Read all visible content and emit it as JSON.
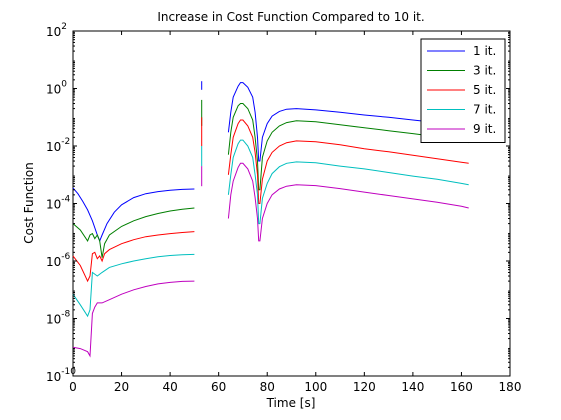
{
  "chart_data": {
    "type": "line",
    "title": "Increase in Cost Function Compared to 10 it.",
    "xlabel": "Time [s]",
    "ylabel": "Cost Function",
    "xlim": [
      0,
      180
    ],
    "ylim_exponents": [
      -10,
      2
    ],
    "y_scale": "log",
    "x_ticks": [
      0,
      20,
      40,
      60,
      80,
      100,
      120,
      140,
      160,
      180
    ],
    "y_tick_labels": [
      {
        "exp": -10,
        "base": "10",
        "sup": "-10"
      },
      {
        "exp": -8,
        "base": "10",
        "sup": "-8"
      },
      {
        "exp": -6,
        "base": "10",
        "sup": "-6"
      },
      {
        "exp": -4,
        "base": "10",
        "sup": "-4"
      },
      {
        "exp": -2,
        "base": "10",
        "sup": "-2"
      },
      {
        "exp": 0,
        "base": "10",
        "sup": "0"
      },
      {
        "exp": 2,
        "base": "10",
        "sup": "2"
      }
    ],
    "grid": false,
    "legend_position": "top-right",
    "series": [
      {
        "name": "1 it.",
        "color": "#0000ff",
        "segments": [
          [
            [
              0,
              0.00035
            ],
            [
              2,
              0.00022
            ],
            [
              4,
              0.00012
            ],
            [
              6,
              6e-05
            ],
            [
              8,
              2.5e-05
            ],
            [
              10,
              8e-06
            ],
            [
              11,
              5e-06
            ],
            [
              12,
              8e-06
            ],
            [
              14,
              2e-05
            ],
            [
              17,
              5e-05
            ],
            [
              20,
              9e-05
            ],
            [
              25,
              0.00016
            ],
            [
              30,
              0.00022
            ],
            [
              35,
              0.00026
            ],
            [
              40,
              0.00029
            ],
            [
              45,
              0.00031
            ],
            [
              50,
              0.00032
            ]
          ],
          [
            [
              53,
              1.8
            ],
            [
              53,
              0.9
            ]
          ],
          [
            [
              64,
              0.03
            ],
            [
              65,
              0.15
            ],
            [
              66,
              0.5
            ],
            [
              68,
              1.2
            ],
            [
              69,
              1.6
            ],
            [
              70,
              1.6
            ],
            [
              72,
              1.1
            ],
            [
              74,
              0.5
            ],
            [
              75,
              0.15
            ],
            [
              76,
              0.02
            ],
            [
              76.5,
              0.003
            ],
            [
              77,
              0.003
            ],
            [
              78,
              0.02
            ],
            [
              80,
              0.06
            ],
            [
              82,
              0.11
            ],
            [
              85,
              0.16
            ],
            [
              88,
              0.19
            ],
            [
              92,
              0.2
            ],
            [
              100,
              0.18
            ],
            [
              110,
              0.15
            ],
            [
              120,
              0.12
            ],
            [
              130,
              0.1
            ],
            [
              140,
              0.08
            ],
            [
              150,
              0.065
            ],
            [
              160,
              0.053
            ],
            [
              163,
              0.05
            ]
          ]
        ]
      },
      {
        "name": "3 it.",
        "color": "#007f00",
        "segments": [
          [
            [
              0,
              2e-05
            ],
            [
              3,
              1.2e-05
            ],
            [
              6,
              5e-06
            ],
            [
              7,
              8e-06
            ],
            [
              8,
              9e-06
            ],
            [
              9,
              6e-06
            ],
            [
              10,
              8e-06
            ],
            [
              11,
              5e-06
            ],
            [
              12,
              1.3e-06
            ],
            [
              13,
              4e-06
            ],
            [
              15,
              8e-06
            ],
            [
              20,
              1.6e-05
            ],
            [
              25,
              2.5e-05
            ],
            [
              30,
              3.5e-05
            ],
            [
              35,
              4.5e-05
            ],
            [
              40,
              5.5e-05
            ],
            [
              45,
              6.3e-05
            ],
            [
              50,
              7e-05
            ]
          ],
          [
            [
              53,
              0.4
            ],
            [
              53,
              0.05
            ]
          ],
          [
            [
              64,
              0.005
            ],
            [
              65,
              0.03
            ],
            [
              66,
              0.1
            ],
            [
              68,
              0.25
            ],
            [
              69,
              0.3
            ],
            [
              70,
              0.3
            ],
            [
              72,
              0.2
            ],
            [
              74,
              0.08
            ],
            [
              75,
              0.02
            ],
            [
              76,
              0.003
            ],
            [
              76.5,
              0.0003
            ],
            [
              77,
              0.0003
            ],
            [
              78,
              0.004
            ],
            [
              80,
              0.015
            ],
            [
              82,
              0.03
            ],
            [
              85,
              0.05
            ],
            [
              88,
              0.065
            ],
            [
              92,
              0.075
            ],
            [
              100,
              0.07
            ],
            [
              110,
              0.055
            ],
            [
              120,
              0.043
            ],
            [
              130,
              0.034
            ],
            [
              140,
              0.027
            ],
            [
              150,
              0.021
            ],
            [
              160,
              0.015
            ],
            [
              163,
              0.013
            ]
          ]
        ]
      },
      {
        "name": "5 it.",
        "color": "#ff0000",
        "segments": [
          [
            [
              0,
              1.5e-06
            ],
            [
              3,
              7e-07
            ],
            [
              6,
              2e-07
            ],
            [
              7,
              3e-07
            ],
            [
              8,
              1.8e-06
            ],
            [
              9,
              2e-06
            ],
            [
              10,
              1.2e-06
            ],
            [
              11,
              1.5e-06
            ],
            [
              12,
              1e-06
            ],
            [
              13,
              1.8e-06
            ],
            [
              15,
              2.5e-06
            ],
            [
              20,
              4e-06
            ],
            [
              25,
              5.5e-06
            ],
            [
              30,
              7e-06
            ],
            [
              35,
              8e-06
            ],
            [
              40,
              9e-06
            ],
            [
              45,
              9.8e-06
            ],
            [
              50,
              1.05e-05
            ]
          ],
          [
            [
              53,
              0.1
            ],
            [
              53,
              0.01
            ]
          ],
          [
            [
              64,
              0.001
            ],
            [
              65,
              0.005
            ],
            [
              66,
              0.02
            ],
            [
              68,
              0.06
            ],
            [
              69,
              0.08
            ],
            [
              70,
              0.08
            ],
            [
              72,
              0.05
            ],
            [
              74,
              0.02
            ],
            [
              75,
              0.006
            ],
            [
              76,
              0.001
            ],
            [
              76.5,
              0.0001
            ],
            [
              77,
              0.0001
            ],
            [
              78,
              0.0007
            ],
            [
              80,
              0.003
            ],
            [
              82,
              0.006
            ],
            [
              85,
              0.01
            ],
            [
              88,
              0.013
            ],
            [
              92,
              0.015
            ],
            [
              100,
              0.014
            ],
            [
              110,
              0.011
            ],
            [
              120,
              0.008
            ],
            [
              130,
              0.0063
            ],
            [
              140,
              0.0048
            ],
            [
              150,
              0.0036
            ],
            [
              160,
              0.0027
            ],
            [
              163,
              0.0025
            ]
          ]
        ]
      },
      {
        "name": "7 it.",
        "color": "#00bfbf",
        "segments": [
          [
            [
              0,
              7e-08
            ],
            [
              3,
              3e-08
            ],
            [
              6,
              1.2e-08
            ],
            [
              7,
              2e-08
            ],
            [
              8,
              4e-07
            ],
            [
              10,
              3e-07
            ],
            [
              12,
              4e-07
            ],
            [
              15,
              6e-07
            ],
            [
              20,
              8e-07
            ],
            [
              25,
              1e-06
            ],
            [
              30,
              1.2e-06
            ],
            [
              35,
              1.4e-06
            ],
            [
              40,
              1.55e-06
            ],
            [
              45,
              1.65e-06
            ],
            [
              50,
              1.7e-06
            ]
          ],
          [
            [
              53,
              0.01
            ],
            [
              53,
              0.002
            ]
          ],
          [
            [
              64,
              0.0002
            ],
            [
              65,
              0.001
            ],
            [
              66,
              0.004
            ],
            [
              68,
              0.012
            ],
            [
              69,
              0.016
            ],
            [
              70,
              0.016
            ],
            [
              72,
              0.01
            ],
            [
              74,
              0.004
            ],
            [
              75,
              0.001
            ],
            [
              76,
              0.0002
            ],
            [
              76.5,
              2e-05
            ],
            [
              77,
              2e-05
            ],
            [
              78,
              0.00015
            ],
            [
              80,
              0.0005
            ],
            [
              82,
              0.0011
            ],
            [
              85,
              0.0019
            ],
            [
              88,
              0.0025
            ],
            [
              92,
              0.0028
            ],
            [
              100,
              0.0026
            ],
            [
              110,
              0.002
            ],
            [
              120,
              0.0016
            ],
            [
              130,
              0.0012
            ],
            [
              140,
              0.0009
            ],
            [
              150,
              0.0007
            ],
            [
              160,
              0.0005
            ],
            [
              163,
              0.00045
            ]
          ]
        ]
      },
      {
        "name": "9 it.",
        "color": "#bf00bf",
        "segments": [
          [
            [
              0,
              1e-09
            ],
            [
              3,
              9e-10
            ],
            [
              6,
              7e-10
            ],
            [
              7,
              5e-10
            ],
            [
              8,
              1.5e-08
            ],
            [
              9,
              2.5e-08
            ],
            [
              10,
              3.5e-08
            ],
            [
              12,
              3.5e-08
            ],
            [
              15,
              4.5e-08
            ],
            [
              20,
              7e-08
            ],
            [
              25,
              1e-07
            ],
            [
              30,
              1.3e-07
            ],
            [
              35,
              1.6e-07
            ],
            [
              40,
              1.8e-07
            ],
            [
              45,
              1.95e-07
            ],
            [
              50,
              2e-07
            ]
          ],
          [
            [
              53,
              0.002
            ],
            [
              53,
              0.0004
            ]
          ],
          [
            [
              64,
              3e-05
            ],
            [
              65,
              0.0002
            ],
            [
              66,
              0.0006
            ],
            [
              68,
              0.0018
            ],
            [
              69,
              0.0025
            ],
            [
              70,
              0.0025
            ],
            [
              72,
              0.0016
            ],
            [
              74,
              0.0006
            ],
            [
              75,
              0.00016
            ],
            [
              76,
              3e-05
            ],
            [
              76.5,
              5e-06
            ],
            [
              77,
              5e-06
            ],
            [
              78,
              3e-05
            ],
            [
              80,
              0.0001
            ],
            [
              82,
              0.0002
            ],
            [
              85,
              0.00032
            ],
            [
              88,
              0.0004
            ],
            [
              92,
              0.00045
            ],
            [
              100,
              0.00042
            ],
            [
              110,
              0.00033
            ],
            [
              120,
              0.00025
            ],
            [
              130,
              0.00019
            ],
            [
              140,
              0.000145
            ],
            [
              150,
              0.00011
            ],
            [
              160,
              8e-05
            ],
            [
              163,
              7e-05
            ]
          ]
        ]
      }
    ]
  }
}
